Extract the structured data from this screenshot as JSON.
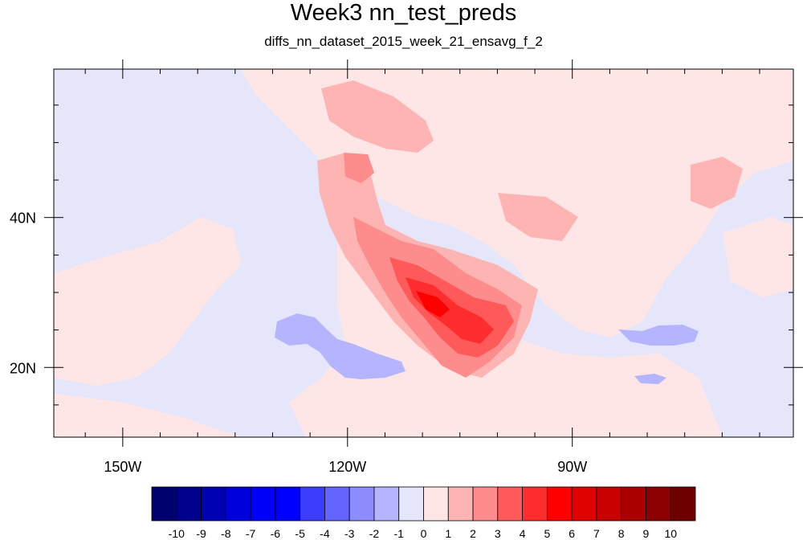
{
  "title": "Week3 nn_test_preds",
  "subtitle": "diffs_nn_dataset_2015_week_21_ensavg_f_2",
  "map": {
    "projection": "cylindrical-equidistant",
    "lon_ticks": [
      {
        "value": -150,
        "label": "150W"
      },
      {
        "value": -120,
        "label": "120W"
      },
      {
        "value": -90,
        "label": "90W"
      }
    ],
    "lat_ticks": [
      {
        "value": 40,
        "label": "40N"
      },
      {
        "value": 20,
        "label": "20N"
      }
    ],
    "lon_range": [
      -159.2,
      -60.5
    ],
    "lat_range": [
      10.7,
      59.8
    ],
    "background_color": "#e6e6fa"
  },
  "colorbar": {
    "labels": [
      "-10",
      "-9",
      "-8",
      "-7",
      "-6",
      "-5",
      "-4",
      "-3",
      "-2",
      "-1",
      "0",
      "1",
      "2",
      "3",
      "4",
      "5",
      "6",
      "7",
      "8",
      "9",
      "10"
    ],
    "colors": [
      "#00006e",
      "#00008c",
      "#0000b4",
      "#0000dc",
      "#0000fa",
      "#0000ff",
      "#3c3cff",
      "#6464ff",
      "#8c8cff",
      "#b4b4ff",
      "#e6e6fa",
      "#ffe6e6",
      "#ffb4b4",
      "#ff8c8c",
      "#ff5a5a",
      "#ff2d2d",
      "#ff0000",
      "#e10000",
      "#c80000",
      "#aa0000",
      "#8c0000",
      "#6e0000"
    ]
  }
}
